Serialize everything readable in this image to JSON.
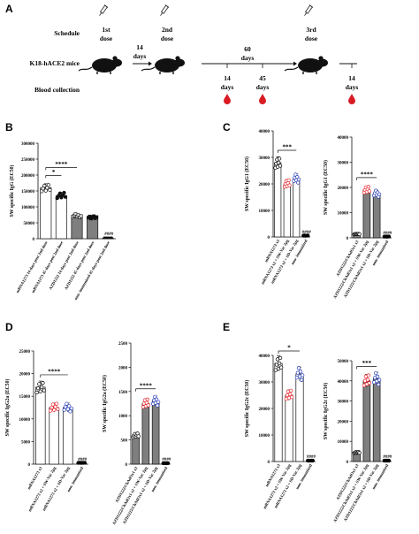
{
  "panels": {
    "a": {
      "letter": "A",
      "row_labels": {
        "schedule": "Schedule",
        "mice": "K18-hACE2 mice",
        "blood": "Blood collection"
      },
      "doses": {
        "first": [
          "1st",
          "dose"
        ],
        "second": [
          "2nd",
          "dose"
        ],
        "third": [
          "3rd",
          "dose"
        ]
      },
      "intervals": {
        "first": [
          "14",
          "days"
        ],
        "second": [
          "60",
          "days"
        ]
      },
      "bleeds": [
        [
          "14",
          "days"
        ],
        [
          "45",
          "days"
        ],
        [
          "14",
          "days"
        ]
      ]
    },
    "b": {
      "letter": "B"
    },
    "c": {
      "letter": "C"
    },
    "d": {
      "letter": "D"
    },
    "e": {
      "letter": "E"
    }
  },
  "chart_data": [
    {
      "id": "B",
      "type": "bar",
      "ylabel": "SW specific IgG (EC50)",
      "ylim": [
        0,
        300000
      ],
      "yticks": [
        0,
        50000,
        100000,
        150000,
        200000,
        250000,
        300000
      ],
      "categories": [
        "mRNA1273 14 days post 2nd dose",
        "mRNA1273 45 days post 2nd dose",
        "AZD1222 14 days post 2nd dose",
        "AZD1222 45 days post 2nd dose",
        "non- immunized 45 days post 2nd dose"
      ],
      "values": [
        160000,
        135000,
        72000,
        68000,
        1500
      ],
      "colors": [
        "#ffffff",
        "#ffffff",
        "#7f7f7f",
        "#7f7f7f",
        "#ffffff"
      ],
      "markers": [
        "open-circle",
        "filled-circle",
        "open-square",
        "filled-square",
        "dot"
      ],
      "annotations": [
        "*",
        "****",
        "####"
      ]
    },
    {
      "id": "C-left",
      "type": "bar",
      "ylabel": "SW specific IgG1 (EC50)",
      "ylim": [
        0,
        40000
      ],
      "yticks": [
        0,
        10000,
        20000,
        30000,
        40000
      ],
      "categories": [
        "mRNA1273 x3",
        "mRNA1273 x2 + SW-Vac 2µg",
        "mRNA1273 x2 + SD-Vac 2µg",
        "non- immunized"
      ],
      "values": [
        28000,
        20000,
        22000,
        500
      ],
      "colors": [
        "#ffffff",
        "#ffffff",
        "#ffffff",
        "#ffffff"
      ],
      "point_colors": [
        "#000000",
        "#e8202a",
        "#2a3fb8",
        "#000000"
      ],
      "annotations": [
        "***",
        "####"
      ]
    },
    {
      "id": "C-right",
      "type": "bar",
      "ylabel": "SW specific IgG1 (EC50)",
      "ylim": [
        0,
        40000
      ],
      "yticks": [
        0,
        10000,
        20000,
        30000,
        40000
      ],
      "categories": [
        "AZD1222/ChAdOx1 x3",
        "AZD1222/ChAdOx1 x2 + SW-Vac 2µg",
        "AZD1222/ChAdOx1 x2 + SD-Vac 2µg",
        "non- immunized"
      ],
      "values": [
        1500,
        19000,
        17500,
        500
      ],
      "colors": [
        "#7f7f7f",
        "#7f7f7f",
        "#7f7f7f",
        "#ffffff"
      ],
      "point_colors": [
        "#000000",
        "#e8202a",
        "#2a3fb8",
        "#000000"
      ],
      "annotations": [
        "****",
        "####"
      ]
    },
    {
      "id": "D-left",
      "type": "bar",
      "ylabel": "SW specific IgG2a (EC50)",
      "ylim": [
        0,
        25000
      ],
      "yticks": [
        0,
        5000,
        10000,
        15000,
        20000,
        25000
      ],
      "categories": [
        "mRNA1273 x3",
        "mRNA1273 x2 + SW-Vac 2µg",
        "mRNA1273 x2 + SD-Vac 2µg",
        "non- immunized"
      ],
      "values": [
        17000,
        12500,
        12500,
        300
      ],
      "colors": [
        "#ffffff",
        "#ffffff",
        "#ffffff",
        "#ffffff"
      ],
      "point_colors": [
        "#000000",
        "#e8202a",
        "#2a3fb8",
        "#000000"
      ],
      "annotations": [
        "****",
        "####"
      ]
    },
    {
      "id": "D-right",
      "type": "bar",
      "ylabel": "SW specific IgG2a (EC50)",
      "ylim": [
        0,
        2500
      ],
      "yticks": [
        0,
        500,
        1000,
        1500,
        2000,
        2500
      ],
      "categories": [
        "AZD1222/ChAdOx1 x3",
        "AZD1222/ChAdOx1 x2 + SW-Vac 2µg",
        "AZD1222/ChAdOx1 x2 + SD-Vac 2µg",
        "non- immunized"
      ],
      "values": [
        600,
        1250,
        1300,
        20
      ],
      "colors": [
        "#7f7f7f",
        "#7f7f7f",
        "#7f7f7f",
        "#ffffff"
      ],
      "point_colors": [
        "#000000",
        "#e8202a",
        "#2a3fb8",
        "#000000"
      ],
      "annotations": [
        "****",
        "####"
      ]
    },
    {
      "id": "E-left",
      "type": "bar",
      "ylabel": "SW specific IgG2c (EC50)",
      "ylim": [
        0,
        40000
      ],
      "yticks": [
        0,
        10000,
        20000,
        30000,
        40000
      ],
      "categories": [
        "mRNA1273 x3",
        "mRNA1273 x2 + SW-Vac 2µg",
        "mRNA1273 x2 + SD-Vac 2µg",
        "non- immunized"
      ],
      "values": [
        37000,
        25000,
        33000,
        300
      ],
      "colors": [
        "#ffffff",
        "#ffffff",
        "#ffffff",
        "#ffffff"
      ],
      "point_colors": [
        "#000000",
        "#e8202a",
        "#2a3fb8",
        "#000000"
      ],
      "annotations": [
        "*",
        "####"
      ]
    },
    {
      "id": "E-right",
      "type": "bar",
      "ylabel": "SW specific IgG2c (EC50)",
      "ylim": [
        0,
        50000
      ],
      "yticks": [
        0,
        10000,
        20000,
        30000,
        40000,
        50000
      ],
      "categories": [
        "AZD1222/ChAdOx1 x3",
        "AZD1222/ChAdOx1 x2 + SW-Vac 2µg",
        "AZD1222/ChAdOx1 x2 + SD-Vac 2µg",
        "non- immunized"
      ],
      "values": [
        4500,
        40000,
        41000,
        300
      ],
      "colors": [
        "#7f7f7f",
        "#7f7f7f",
        "#7f7f7f",
        "#ffffff"
      ],
      "point_colors": [
        "#000000",
        "#e8202a",
        "#2a3fb8",
        "#000000"
      ],
      "annotations": [
        "***",
        "####"
      ]
    }
  ]
}
